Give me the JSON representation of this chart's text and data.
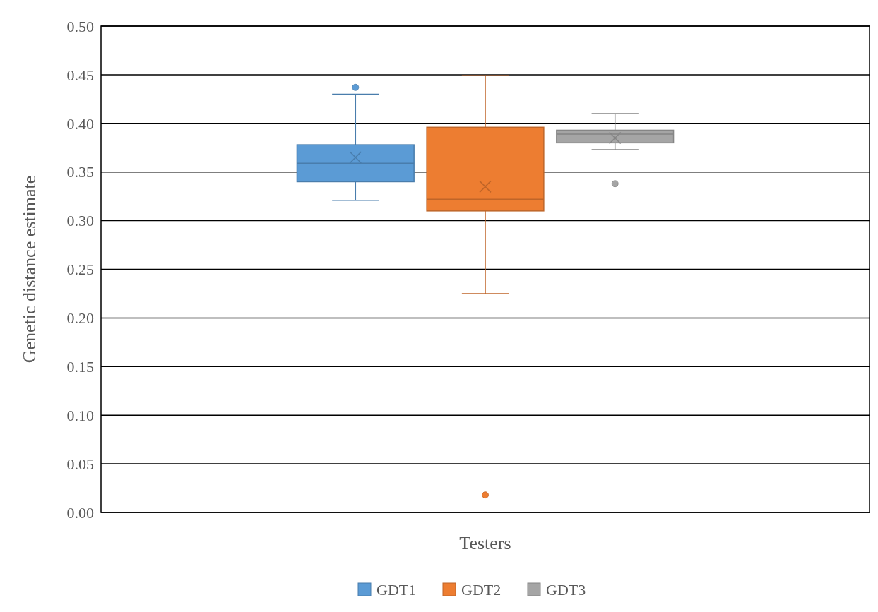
{
  "chart_data": {
    "type": "box",
    "xlabel": "Testers",
    "ylabel": "Genetic distance estimate",
    "categories": [
      null
    ],
    "series": [
      {
        "name": "GDT1",
        "color": "#5b9bd5",
        "boxes": [
          {
            "low": 0.321,
            "q1": 0.34,
            "median": 0.359,
            "q3": 0.378,
            "high": 0.43,
            "mean": 0.365,
            "outliers": [
              0.437
            ]
          }
        ]
      },
      {
        "name": "GDT2",
        "color": "#ed7d31",
        "boxes": [
          {
            "low": 0.225,
            "q1": 0.31,
            "median": 0.322,
            "q3": 0.396,
            "high": 0.449,
            "mean": 0.335,
            "outliers": [
              0.018
            ]
          }
        ]
      },
      {
        "name": "GDT3",
        "color": "#a5a5a5",
        "boxes": [
          {
            "low": 0.373,
            "q1": 0.38,
            "median": 0.389,
            "q3": 0.393,
            "high": 0.41,
            "mean": 0.385,
            "outliers": [
              0.338
            ]
          }
        ]
      }
    ],
    "ylim": [
      0,
      0.5
    ],
    "yticks": [
      {
        "value": 0,
        "label": "0.00"
      },
      {
        "value": 0.05,
        "label": "0.05"
      },
      {
        "value": 0.1,
        "label": "0.10"
      },
      {
        "value": 0.15,
        "label": "0.15"
      },
      {
        "value": 0.2,
        "label": "0.20"
      },
      {
        "value": 0.25,
        "label": "0.25"
      },
      {
        "value": 0.3,
        "label": "0.30"
      },
      {
        "value": 0.35,
        "label": "0.35"
      },
      {
        "value": 0.4,
        "label": "0.40"
      },
      {
        "value": 0.45,
        "label": "0.45"
      },
      {
        "value": 0.5,
        "label": "0.50"
      }
    ],
    "grid": "y",
    "legend": "bottom"
  }
}
